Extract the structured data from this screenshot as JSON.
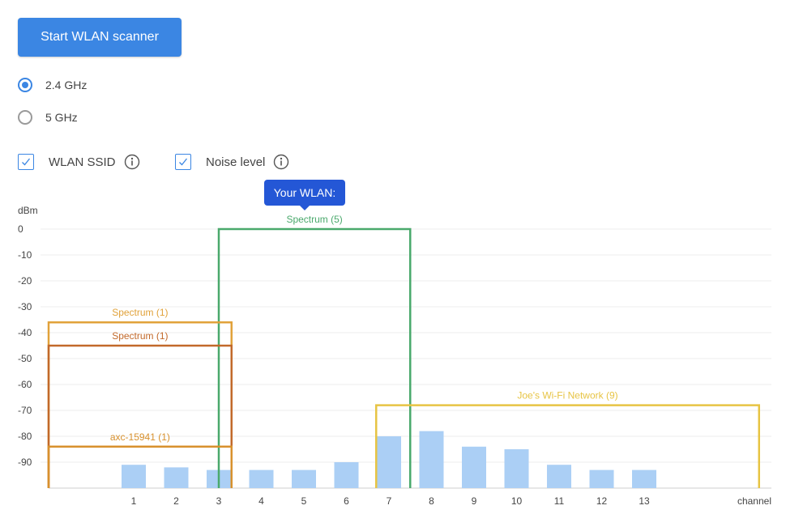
{
  "actions": {
    "start_label": "Start WLAN scanner"
  },
  "band": {
    "options": [
      {
        "label": "2.4 GHz",
        "selected": true
      },
      {
        "label": "5 GHz",
        "selected": false
      }
    ]
  },
  "toggles": [
    {
      "label": "WLAN SSID",
      "checked": true,
      "icon": "info-icon"
    },
    {
      "label": "Noise level",
      "checked": true,
      "icon": "info-icon"
    }
  ],
  "tooltip": {
    "text": "Your WLAN:"
  },
  "colors": {
    "accent": "#3b86e3",
    "tooltip": "#2457d6",
    "bar": "#abcff5"
  },
  "chart_data": {
    "type": "bar",
    "ylabel": "dBm",
    "xlabel": "channel",
    "ylim": [
      -100,
      0
    ],
    "yticks": [
      0,
      -10,
      -20,
      -30,
      -40,
      -50,
      -60,
      -70,
      -80,
      -90
    ],
    "categories": [
      "1",
      "2",
      "3",
      "4",
      "5",
      "6",
      "7",
      "8",
      "9",
      "10",
      "11",
      "12",
      "13"
    ],
    "noise_level": [
      -91,
      -92,
      -93,
      -93,
      -93,
      -90,
      -80,
      -78,
      -84,
      -85,
      -91,
      -93,
      -93
    ],
    "networks": [
      {
        "label": "Spectrum (5)",
        "channel_from": 3,
        "channel_to": 7.5,
        "dbm": 0,
        "color": "#4aa96c"
      },
      {
        "label": "Spectrum (1)",
        "channel_from": -1,
        "channel_to": 3.3,
        "dbm": -36,
        "color": "#e1a23a"
      },
      {
        "label": "Spectrum (1)",
        "channel_from": -1,
        "channel_to": 3.3,
        "dbm": -45,
        "color": "#c2692a"
      },
      {
        "label": "axc-15941 (1)",
        "channel_from": -1,
        "channel_to": 3.3,
        "dbm": -84,
        "color": "#d8912d"
      },
      {
        "label": "Joe's Wi-Fi Network (9)",
        "channel_from": 6.7,
        "channel_to": 15.7,
        "dbm": -68,
        "color": "#e7c444"
      }
    ]
  }
}
